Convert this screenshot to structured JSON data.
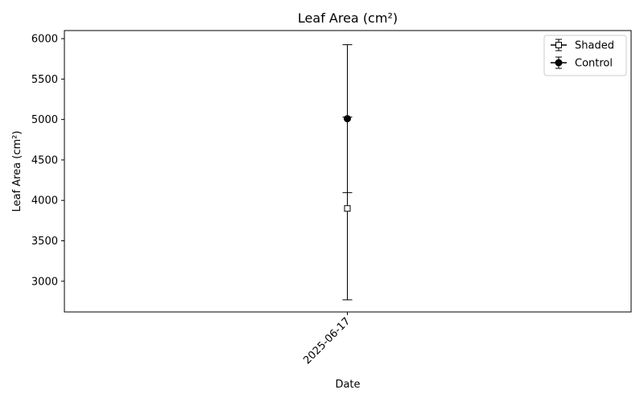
{
  "chart_data": {
    "type": "scatter",
    "title": "Leaf Area (cm²)",
    "xlabel": "Date",
    "ylabel": "Leaf Area (cm²)",
    "categories": [
      "2025-06-17"
    ],
    "ylim": [
      2620,
      6100
    ],
    "yticks": [
      3000,
      3500,
      4000,
      4500,
      5000,
      5500,
      6000
    ],
    "grid": false,
    "legend_position": "top-right",
    "series": [
      {
        "name": "Shaded",
        "marker": "square-open",
        "color": "#000000",
        "values": [
          3900
        ],
        "error": [
          1130
        ]
      },
      {
        "name": "Control",
        "marker": "circle-filled",
        "color": "#000000",
        "values": [
          5010
        ],
        "error": [
          915
        ]
      }
    ]
  }
}
